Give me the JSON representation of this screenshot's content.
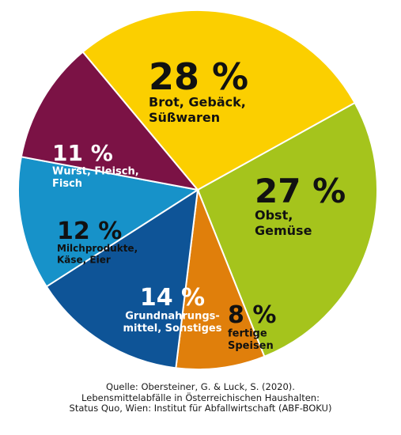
{
  "chart_data": {
    "type": "pie",
    "start_angle_deg": -29,
    "direction": "clockwise",
    "slices": [
      {
        "percent_label": "27 %",
        "value": 27,
        "label_lines": [
          "Obst,",
          "Gemüse"
        ],
        "color": "#A5C41C",
        "pct_color": "#111111",
        "lbl_color": "#111111"
      },
      {
        "percent_label": "8 %",
        "value": 8,
        "label_lines": [
          "fertige",
          "Speisen"
        ],
        "color": "#E07F0B",
        "pct_color": "#111111",
        "lbl_color": "#111111"
      },
      {
        "percent_label": "14 %",
        "value": 14,
        "label_lines": [
          "Grundnahrungs-",
          "mittel, Sonstiges"
        ],
        "color": "#0E5497",
        "pct_color": "#ffffff",
        "lbl_color": "#ffffff"
      },
      {
        "percent_label": "12 %",
        "value": 12,
        "label_lines": [
          "Milchprodukte,",
          "Käse, Eier"
        ],
        "color": "#1792C9",
        "pct_color": "#111111",
        "lbl_color": "#111111"
      },
      {
        "percent_label": "11 %",
        "value": 11,
        "label_lines": [
          "Wurst, Fleisch,",
          "Fisch"
        ],
        "color": "#7B1245",
        "pct_color": "#ffffff",
        "lbl_color": "#ffffff"
      },
      {
        "percent_label": "28 %",
        "value": 28,
        "label_lines": [
          "Brot, Gebäck,",
          "Süßwaren"
        ],
        "color": "#FBCF00",
        "pct_color": "#111111",
        "lbl_color": "#111111"
      }
    ]
  },
  "source": [
    "Quelle: Obersteiner, G. & Luck, S. (2020).",
    "Lebensmittelabfälle in Österreichischen Haushalten:",
    "Status Quo, Wien: Institut für Abfallwirtschaft (ABF-BOKU)"
  ]
}
